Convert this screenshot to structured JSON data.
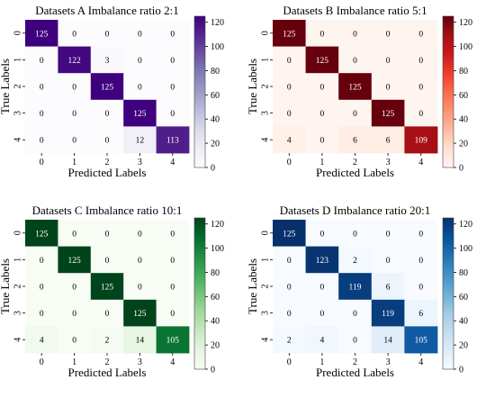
{
  "colorscales": {
    "purples": [
      "#fcfbfd",
      "#efedf5",
      "#dadaeb",
      "#bcbddc",
      "#9e9ac8",
      "#807dba",
      "#6a51a3",
      "#54278f",
      "#3f007d"
    ],
    "reds": [
      "#fff5f0",
      "#fee0d2",
      "#fcbba1",
      "#fc9272",
      "#fb6a4a",
      "#ef3b2c",
      "#cb181d",
      "#a50f15",
      "#67000d"
    ],
    "greens": [
      "#f7fcf5",
      "#e5f5e0",
      "#c7e9c0",
      "#a1d99b",
      "#74c476",
      "#41ab5d",
      "#238b45",
      "#006d2c",
      "#00441b"
    ],
    "blues": [
      "#f7fbff",
      "#deebf7",
      "#c6dbef",
      "#9ecae1",
      "#6baed6",
      "#4292c6",
      "#2171b5",
      "#08519c",
      "#08306b"
    ]
  },
  "chart_data": [
    {
      "type": "heatmap",
      "title": "Datasets A   Imbalance ratio 2:1",
      "xlabel": "Predicted Labels",
      "ylabel": "True Labels",
      "x_ticks": [
        "0",
        "1",
        "2",
        "3",
        "4"
      ],
      "y_ticks": [
        "0",
        "1",
        "2",
        "3",
        "4"
      ],
      "colorscale": "purples",
      "colorbar_ticks": [
        "0",
        "20",
        "40",
        "60",
        "80",
        "100",
        "120"
      ],
      "vmin": 0,
      "vmax": 125,
      "values": [
        [
          125,
          0,
          0,
          0,
          0
        ],
        [
          0,
          122,
          3,
          0,
          0
        ],
        [
          0,
          0,
          125,
          0,
          0
        ],
        [
          0,
          0,
          0,
          125,
          0
        ],
        [
          0,
          0,
          0,
          12,
          113
        ]
      ]
    },
    {
      "type": "heatmap",
      "title": "Datasets B   Imbalance ratio 5:1",
      "xlabel": "Predicted Labels",
      "ylabel": "True Labels",
      "x_ticks": [
        "0",
        "1",
        "2",
        "3",
        "4"
      ],
      "y_ticks": [
        "0",
        "1",
        "2",
        "3",
        "4"
      ],
      "colorscale": "reds",
      "colorbar_ticks": [
        "0",
        "20",
        "40",
        "60",
        "80",
        "100",
        "120"
      ],
      "vmin": 0,
      "vmax": 125,
      "values": [
        [
          125,
          0,
          0,
          0,
          0
        ],
        [
          0,
          125,
          0,
          0,
          0
        ],
        [
          0,
          0,
          125,
          0,
          0
        ],
        [
          0,
          0,
          0,
          125,
          0
        ],
        [
          4,
          0,
          6,
          6,
          109
        ]
      ]
    },
    {
      "type": "heatmap",
      "title": "Datasets C   Imbalance ratio 10:1",
      "xlabel": "Predicted Labels",
      "ylabel": "True Labels",
      "x_ticks": [
        "0",
        "1",
        "2",
        "3",
        "4"
      ],
      "y_ticks": [
        "0",
        "1",
        "2",
        "3",
        "4"
      ],
      "colorscale": "greens",
      "colorbar_ticks": [
        "0",
        "20",
        "40",
        "60",
        "80",
        "100",
        "120"
      ],
      "vmin": 0,
      "vmax": 125,
      "values": [
        [
          125,
          0,
          0,
          0,
          0
        ],
        [
          0,
          125,
          0,
          0,
          0
        ],
        [
          0,
          0,
          125,
          0,
          0
        ],
        [
          0,
          0,
          0,
          125,
          0
        ],
        [
          4,
          0,
          2,
          14,
          105
        ]
      ]
    },
    {
      "type": "heatmap",
      "title": "Datasets D   Imbalance ratio 20:1",
      "xlabel": "Predicted Labels",
      "ylabel": "True Labels",
      "x_ticks": [
        "0",
        "1",
        "2",
        "3",
        "4"
      ],
      "y_ticks": [
        "0",
        "1",
        "2",
        "3",
        "4"
      ],
      "colorscale": "blues",
      "colorbar_ticks": [
        "0",
        "20",
        "40",
        "60",
        "80",
        "100",
        "120"
      ],
      "vmin": 0,
      "vmax": 125,
      "values": [
        [
          125,
          0,
          0,
          0,
          0
        ],
        [
          0,
          123,
          2,
          0,
          0
        ],
        [
          0,
          0,
          119,
          6,
          0
        ],
        [
          0,
          0,
          0,
          119,
          6
        ],
        [
          2,
          4,
          0,
          14,
          105
        ]
      ]
    }
  ]
}
